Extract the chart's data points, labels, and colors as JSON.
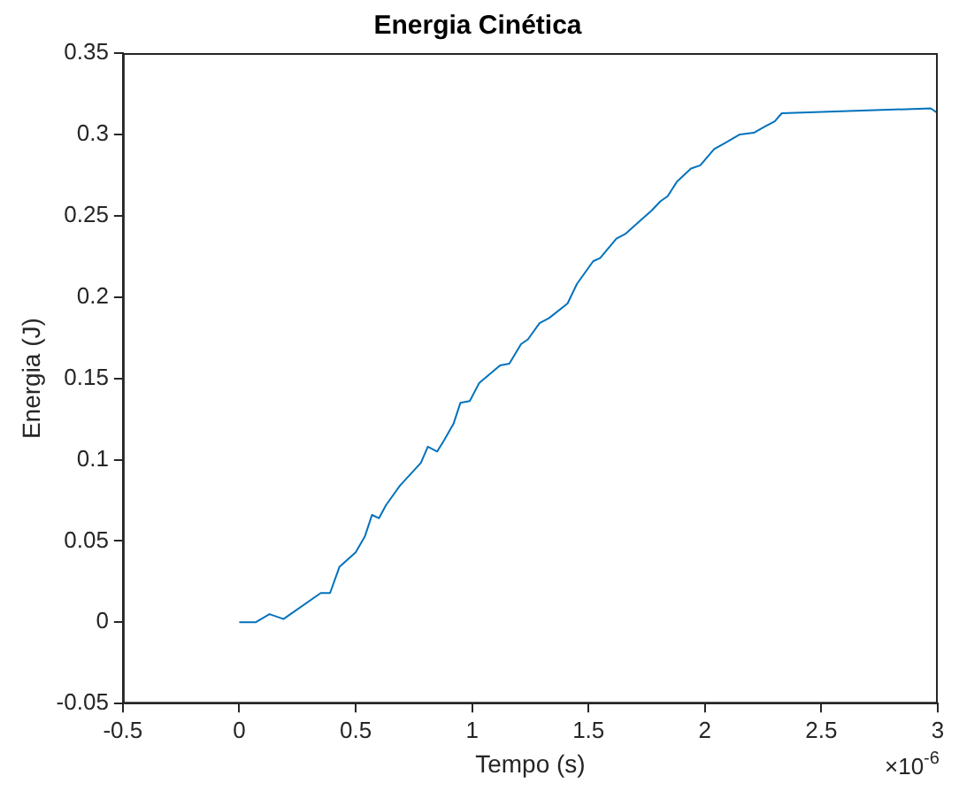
{
  "chart_data": {
    "type": "line",
    "title": "Energia Cinética",
    "xlabel": "Tempo (s)",
    "ylabel": "Energia (J)",
    "annotations": [
      "×10$^{-6}$"
    ],
    "x": [
      0,
      0.07,
      0.13,
      0.19,
      0.35,
      0.39,
      0.43,
      0.5,
      0.54,
      0.57,
      0.6,
      0.63,
      0.67,
      0.69,
      0.78,
      0.81,
      0.85,
      0.88,
      0.92,
      0.95,
      0.99,
      1.03,
      1.12,
      1.16,
      1.21,
      1.24,
      1.29,
      1.33,
      1.41,
      1.45,
      1.52,
      1.55,
      1.62,
      1.66,
      1.73,
      1.77,
      1.81,
      1.84,
      1.88,
      1.94,
      1.98,
      2.04,
      2.09,
      2.15,
      2.21,
      2.26,
      2.3,
      2.33,
      2.97,
      3.0
    ],
    "series": [
      {
        "color": "#0072bd",
        "values": [
          0,
          0,
          0.005,
          0.002,
          0.018,
          0.018,
          0.034,
          0.043,
          0.053,
          0.066,
          0.064,
          0.072,
          0.08,
          0.084,
          0.098,
          0.108,
          0.105,
          0.112,
          0.122,
          0.135,
          0.136,
          0.147,
          0.158,
          0.159,
          0.171,
          0.174,
          0.184,
          0.187,
          0.196,
          0.208,
          0.222,
          0.224,
          0.236,
          0.239,
          0.248,
          0.253,
          0.259,
          0.262,
          0.271,
          0.279,
          0.281,
          0.291,
          0.295,
          0.3,
          0.301,
          0.305,
          0.308,
          0.313,
          0.316,
          0.313
        ]
      }
    ],
    "xlim": [
      -0.5,
      3
    ],
    "xticks": [
      -0.5,
      0,
      0.5,
      1,
      1.5,
      2,
      2.5,
      3
    ],
    "ylim": [
      -0.05,
      0.35
    ],
    "yticks": [
      -0.05,
      0,
      0.05,
      0.1,
      0.15,
      0.2,
      0.25,
      0.3,
      0.35
    ],
    "grid": false,
    "legend": false,
    "marker": "none",
    "line_style": "solid"
  }
}
